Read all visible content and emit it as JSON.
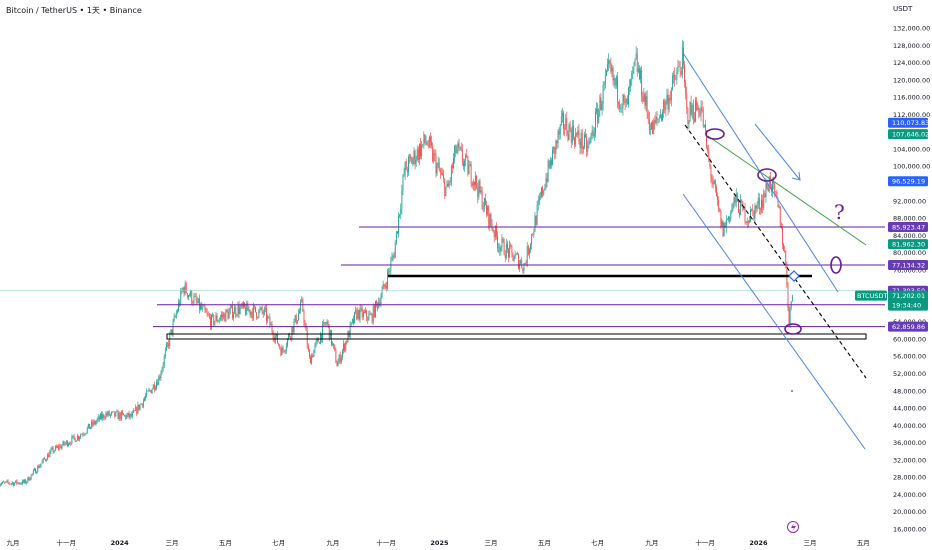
{
  "header": {
    "symbol_title": "Bitcoin / TetherUS • 1天 • Binance",
    "axis_unit": "USDT"
  },
  "chart_data": {
    "type": "line",
    "title": "",
    "ylim": [
      16000,
      136000
    ],
    "y_ticks": [
      "132,000.00",
      "128,000.00",
      "124,000.00",
      "120,000.00",
      "116,000.00",
      "112,000.00",
      "104,000.00",
      "100,000.00",
      "92,000.00",
      "88,000.00",
      "84,000.00",
      "80,000.00",
      "76,000.00",
      "68,000.00",
      "64,000.00",
      "60,000.00",
      "56,000.00",
      "52,000.00",
      "48,000.00",
      "44,000.00",
      "40,000.00",
      "36,000.00",
      "32,000.00",
      "28,000.00",
      "24,000.00",
      "20,000.00",
      "16,000.00"
    ],
    "x_ticks": [
      {
        "label": "九月",
        "date": "2023-09-01",
        "bold": false
      },
      {
        "label": "十一月",
        "date": "2023-11-01",
        "bold": false
      },
      {
        "label": "2024",
        "date": "2024-01-01",
        "bold": true
      },
      {
        "label": "三月",
        "date": "2024-03-01",
        "bold": false
      },
      {
        "label": "五月",
        "date": "2024-05-01",
        "bold": false
      },
      {
        "label": "七月",
        "date": "2024-07-01",
        "bold": false
      },
      {
        "label": "九月",
        "date": "2024-09-01",
        "bold": false
      },
      {
        "label": "十一月",
        "date": "2024-11-01",
        "bold": false
      },
      {
        "label": "2025",
        "date": "2025-01-01",
        "bold": true
      },
      {
        "label": "三月",
        "date": "2025-03-01",
        "bold": false
      },
      {
        "label": "五月",
        "date": "2025-05-01",
        "bold": false
      },
      {
        "label": "七月",
        "date": "2025-07-01",
        "bold": false
      },
      {
        "label": "九月",
        "date": "2025-09-01",
        "bold": false
      },
      {
        "label": "十一月",
        "date": "2025-11-01",
        "bold": false
      },
      {
        "label": "2026",
        "date": "2026-01-01",
        "bold": true
      },
      {
        "label": "三月",
        "date": "2026-03-01",
        "bold": false
      },
      {
        "label": "五月",
        "date": "2026-05-01",
        "bold": false
      }
    ],
    "series": [
      {
        "dates": [
          "2023-08-15",
          "2023-09-15",
          "2023-10-15",
          "2023-11-15",
          "2023-12-15",
          "2024-01-15",
          "2024-02-15",
          "2024-03-14",
          "2024-04-15",
          "2024-05-15",
          "2024-06-15",
          "2024-07-05",
          "2024-07-28",
          "2024-08-05",
          "2024-08-25",
          "2024-09-06",
          "2024-09-28",
          "2024-10-15",
          "2024-10-30",
          "2024-11-10",
          "2024-11-22",
          "2024-12-17",
          "2025-01-10",
          "2025-01-20",
          "2025-02-10",
          "2025-03-10",
          "2025-04-08",
          "2025-05-01",
          "2025-05-22",
          "2025-06-20",
          "2025-07-14",
          "2025-08-02",
          "2025-08-14",
          "2025-09-01",
          "2025-09-20",
          "2025-10-06",
          "2025-10-11",
          "2025-10-27",
          "2025-11-05",
          "2025-11-21",
          "2025-12-05",
          "2025-12-20",
          "2026-01-05",
          "2026-01-14",
          "2026-01-25",
          "2026-02-02",
          "2026-02-05",
          "2026-02-08",
          "2026-02-10"
        ],
        "values": [
          26500,
          26800,
          34000,
          37500,
          42500,
          42000,
          51000,
          72000,
          64000,
          67000,
          66000,
          57000,
          68000,
          55000,
          64000,
          54000,
          66000,
          65000,
          72000,
          80000,
          99000,
          106000,
          94000,
          104000,
          97000,
          82000,
          77000,
          96000,
          110000,
          104000,
          122000,
          113000,
          124000,
          108000,
          116000,
          124500,
          112000,
          114000,
          101000,
          85000,
          92000,
          88000,
          92000,
          97000,
          89000,
          76000,
          63000,
          70500,
          71202
        ]
      }
    ],
    "levels": [
      {
        "price": "110,073.83",
        "color": "#2962ff"
      },
      {
        "price": "107,646.02",
        "color": "#089981"
      },
      {
        "price": "96,529.19",
        "color": "#2962ff"
      },
      {
        "price": "85,923.47",
        "color": "#673ab7"
      },
      {
        "price": "81,962.30",
        "color": "#089981"
      },
      {
        "price": "77,134.32",
        "color": "#673ab7"
      },
      {
        "price": "71,393.50",
        "color": "#673ab7"
      },
      {
        "price": "62,859.86",
        "color": "#673ab7"
      }
    ],
    "current_price": {
      "symbol": "BTCUSDT",
      "price": "71,202.01",
      "countdown": "19:34:40",
      "color": "#089981"
    },
    "up_color": "#26a69a",
    "down_color": "#ef5350",
    "lines": {
      "channel": "#4a86e8",
      "support": "#6a1b9a",
      "resistance": "#43a047",
      "dashed": "#000000"
    },
    "annotation_mark": "?"
  }
}
